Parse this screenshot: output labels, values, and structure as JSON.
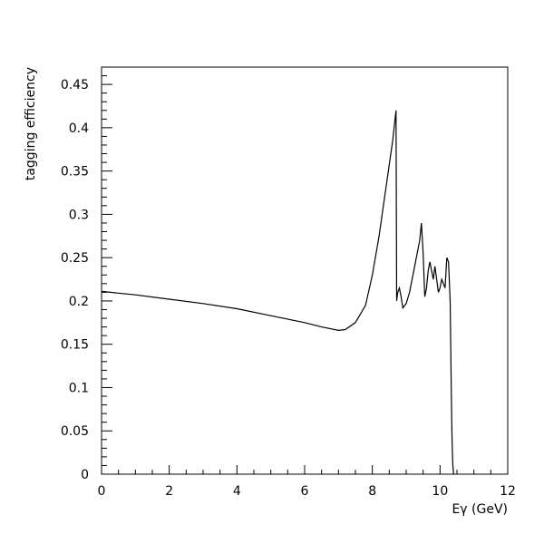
{
  "chart_data": {
    "type": "line",
    "title": "",
    "xlabel": "Eγ (GeV)",
    "ylabel": "tagging efficiency",
    "xlim": [
      0,
      12
    ],
    "ylim": [
      0,
      0.47
    ],
    "x_ticks": [
      "0",
      "2",
      "4",
      "6",
      "8",
      "10",
      "12"
    ],
    "y_ticks": [
      "0",
      "0.05",
      "0.1",
      "0.15",
      "0.2",
      "0.25",
      "0.3",
      "0.35",
      "0.4",
      "0.45"
    ],
    "grid": false,
    "legend": "none",
    "line_color": "#000000",
    "series": [
      {
        "x": [
          0,
          1,
          2,
          3,
          4,
          5,
          6,
          6.5,
          7,
          7.2,
          7.5,
          7.8,
          8.0,
          8.2,
          8.4,
          8.6,
          8.7,
          8.72,
          8.75,
          8.8,
          8.85,
          8.9,
          9.0,
          9.1,
          9.2,
          9.3,
          9.4,
          9.45,
          9.5,
          9.55,
          9.6,
          9.65,
          9.7,
          9.75,
          9.8,
          9.85,
          9.9,
          9.95,
          10.0,
          10.05,
          10.1,
          10.15,
          10.2,
          10.25,
          10.3,
          10.33,
          10.35,
          10.37,
          10.38,
          10.4
        ],
        "y": [
          0.211,
          0.207,
          0.202,
          0.197,
          0.191,
          0.183,
          0.175,
          0.17,
          0.166,
          0.167,
          0.175,
          0.195,
          0.23,
          0.275,
          0.33,
          0.385,
          0.42,
          0.2,
          0.21,
          0.215,
          0.205,
          0.192,
          0.197,
          0.21,
          0.23,
          0.25,
          0.27,
          0.29,
          0.255,
          0.205,
          0.215,
          0.235,
          0.245,
          0.235,
          0.225,
          0.24,
          0.225,
          0.21,
          0.215,
          0.225,
          0.22,
          0.215,
          0.25,
          0.245,
          0.2,
          0.1,
          0.05,
          0.02,
          0.01,
          0
        ]
      }
    ]
  }
}
